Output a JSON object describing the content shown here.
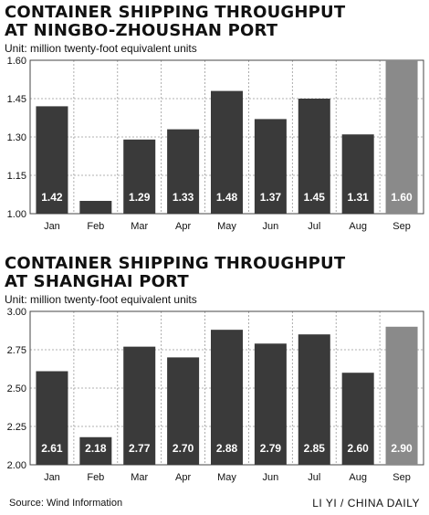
{
  "footer": {
    "source": "Source: Wind Information",
    "credit": "LI YI / CHINA DAILY"
  },
  "colors": {
    "bar": "#3a3a3a",
    "highlight": "#8a8a8a",
    "grid": "#999999"
  },
  "chart_data": [
    {
      "type": "bar",
      "title_line1": "CONTAINER SHIPPING THROUGHPUT",
      "title_line2": "AT NINGBO-ZHOUSHAN PORT",
      "unit": "Unit: million twenty-foot equivalent units",
      "categories": [
        "Jan",
        "Feb",
        "Mar",
        "Apr",
        "May",
        "Jun",
        "Jul",
        "Aug",
        "Sep"
      ],
      "values": [
        1.42,
        1.05,
        1.29,
        1.33,
        1.48,
        1.37,
        1.45,
        1.31,
        1.6
      ],
      "labels": [
        "1.42",
        "1.05",
        "1.29",
        "1.33",
        "1.48",
        "1.37",
        "1.45",
        "1.31",
        "1.60"
      ],
      "highlight_index": 8,
      "ylim": [
        1.0,
        1.6
      ],
      "yticks": [
        1.0,
        1.15,
        1.3,
        1.45,
        1.6
      ],
      "ytick_labels": [
        "1.00",
        "1.15",
        "1.30",
        "1.45",
        "1.60"
      ],
      "grid": "dashed horizontal"
    },
    {
      "type": "bar",
      "title_line1": "CONTAINER SHIPPING THROUGHPUT",
      "title_line2": "AT SHANGHAI PORT",
      "unit": "Unit: million twenty-foot equivalent units",
      "categories": [
        "Jan",
        "Feb",
        "Mar",
        "Apr",
        "May",
        "Jun",
        "Jul",
        "Aug",
        "Sep"
      ],
      "values": [
        2.61,
        2.18,
        2.77,
        2.7,
        2.88,
        2.79,
        2.85,
        2.6,
        2.9
      ],
      "labels": [
        "2.61",
        "2.18",
        "2.77",
        "2.70",
        "2.88",
        "2.79",
        "2.85",
        "2.60",
        "2.90"
      ],
      "highlight_index": 8,
      "ylim": [
        2.0,
        3.0
      ],
      "yticks": [
        2.0,
        2.25,
        2.5,
        2.75,
        3.0
      ],
      "ytick_labels": [
        "2.00",
        "2.25",
        "2.50",
        "2.75",
        "3.00"
      ],
      "grid": "dashed horizontal"
    }
  ]
}
